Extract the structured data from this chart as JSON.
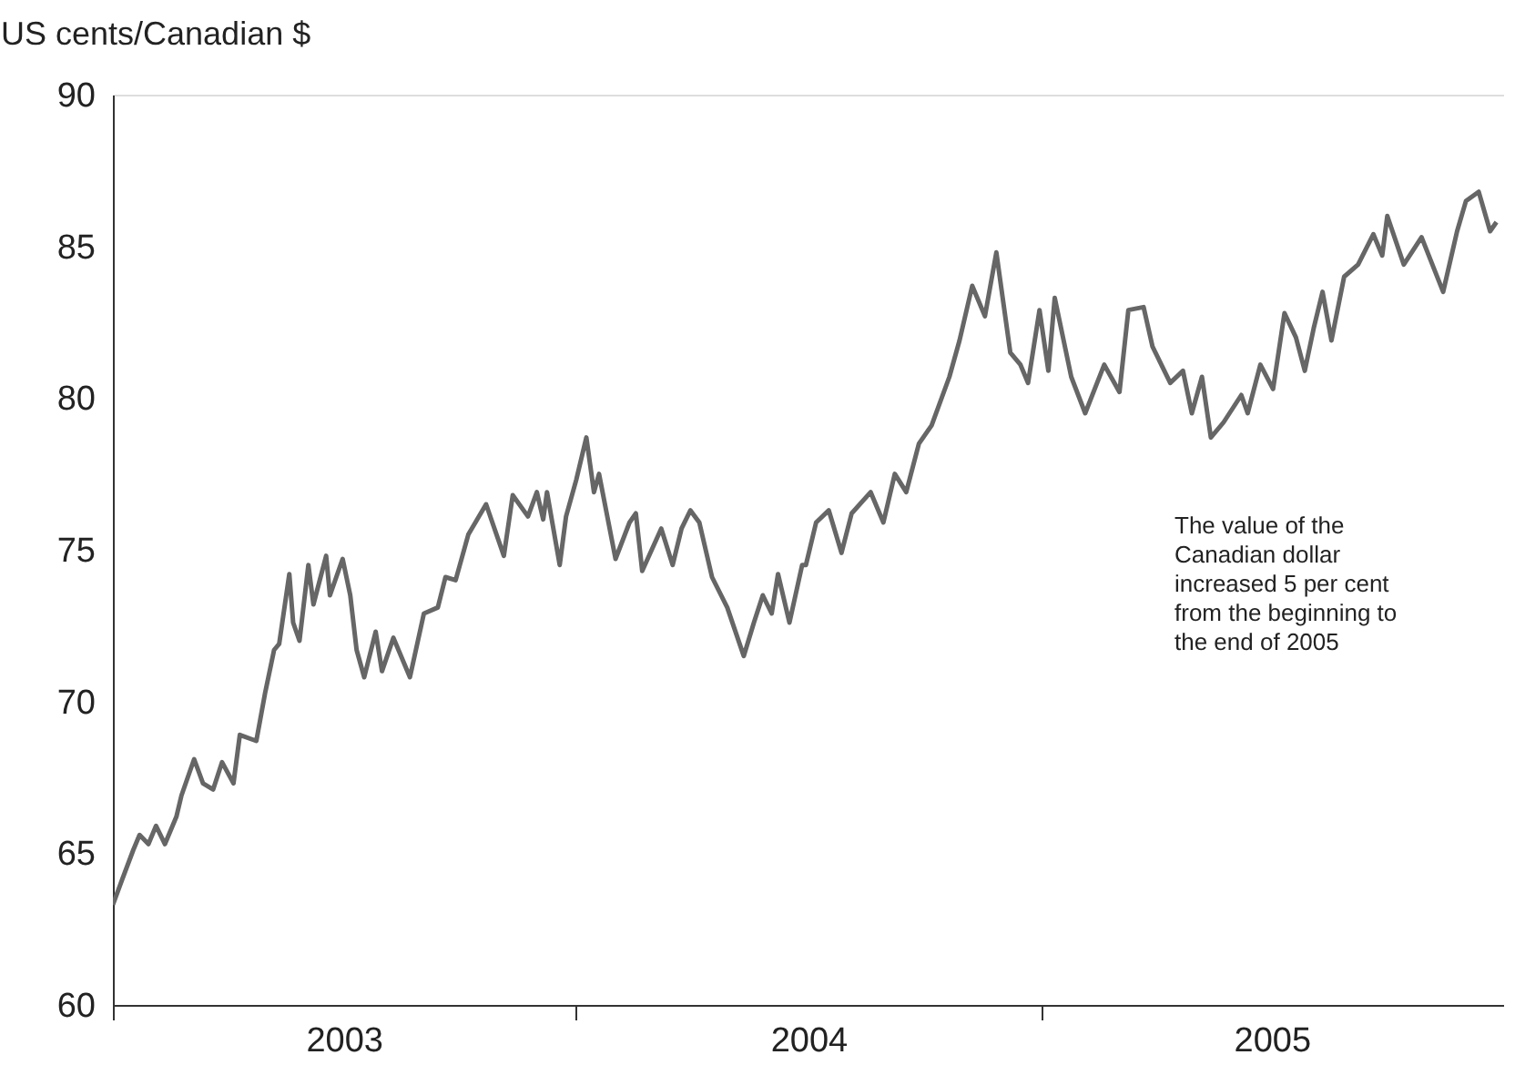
{
  "chart_data": {
    "type": "line",
    "ylabel": "US cents/Canadian $",
    "annotations": [
      "The value of the Canadian dollar increased 5 per cent from the beginning to the end of 2005"
    ],
    "xlim": [
      "2003-01-01",
      "2006-01-01"
    ],
    "xticks": [
      {
        "value": "2003-01-01",
        "label": null
      },
      {
        "value": "2003-07-02",
        "label": "2003"
      },
      {
        "value": "2004-01-01",
        "label": null
      },
      {
        "value": "2004-07-02",
        "label": "2004"
      },
      {
        "value": "2005-01-01",
        "label": null
      },
      {
        "value": "2005-07-02",
        "label": "2005"
      },
      {
        "value": "2006-01-01",
        "label": null
      }
    ],
    "ylim": [
      60,
      90
    ],
    "yticks": [
      60,
      65,
      70,
      75,
      80,
      85,
      90
    ],
    "grid": false,
    "legend": false,
    "marker": "none",
    "line_style": "solid",
    "series": [
      {
        "color": "#666666",
        "x": [
          "2003-01-01",
          "2003-01-08",
          "2003-01-17",
          "2003-01-22",
          "2003-01-29",
          "2003-02-04",
          "2003-02-11",
          "2003-02-20",
          "2003-02-24",
          "2003-03-06",
          "2003-03-13",
          "2003-03-21",
          "2003-03-28",
          "2003-04-06",
          "2003-04-11",
          "2003-04-24",
          "2003-05-01",
          "2003-05-08",
          "2003-05-12",
          "2003-05-20",
          "2003-05-23",
          "2003-05-28",
          "2003-06-04",
          "2003-06-08",
          "2003-06-18",
          "2003-06-21",
          "2003-07-01",
          "2003-07-07",
          "2003-07-12",
          "2003-07-18",
          "2003-07-27",
          "2003-08-01",
          "2003-08-10",
          "2003-08-23",
          "2003-09-03",
          "2003-09-14",
          "2003-09-20",
          "2003-09-28",
          "2003-10-08",
          "2003-10-22",
          "2003-11-05",
          "2003-11-12",
          "2003-11-24",
          "2003-12-01",
          "2003-12-06",
          "2003-12-09",
          "2003-12-19",
          "2003-12-24",
          "2004-01-01",
          "2004-01-09",
          "2004-01-15",
          "2004-01-19",
          "2004-02-01",
          "2004-02-12",
          "2004-02-17",
          "2004-02-22",
          "2004-03-08",
          "2004-03-17",
          "2004-03-24",
          "2004-03-31",
          "2004-04-07",
          "2004-04-17",
          "2004-04-29",
          "2004-05-12",
          "2004-05-20",
          "2004-05-27",
          "2004-06-03",
          "2004-06-08",
          "2004-06-17",
          "2004-06-27",
          "2004-06-30",
          "2004-07-08",
          "2004-07-18",
          "2004-07-28",
          "2004-08-05",
          "2004-08-20",
          "2004-08-30",
          "2004-09-08",
          "2004-09-17",
          "2004-09-27",
          "2004-10-07",
          "2004-10-21",
          "2004-10-29",
          "2004-11-08",
          "2004-11-18",
          "2004-11-27",
          "2004-12-08",
          "2004-12-16",
          "2004-12-22",
          "2004-12-31",
          "2005-01-07",
          "2005-01-12",
          "2005-01-25",
          "2005-02-05",
          "2005-02-20",
          "2005-03-04",
          "2005-03-11",
          "2005-03-23",
          "2005-03-30",
          "2005-04-13",
          "2005-04-23",
          "2005-04-30",
          "2005-05-08",
          "2005-05-15",
          "2005-05-25",
          "2005-06-08",
          "2005-06-13",
          "2005-06-23",
          "2005-07-03",
          "2005-07-12",
          "2005-07-21",
          "2005-07-28",
          "2005-08-04",
          "2005-08-11",
          "2005-08-18",
          "2005-08-28",
          "2005-09-08",
          "2005-09-20",
          "2005-09-27",
          "2005-10-01",
          "2005-10-14",
          "2005-10-28",
          "2005-11-14",
          "2005-11-25",
          "2005-12-02",
          "2005-12-12",
          "2005-12-21",
          "2005-12-26"
        ],
        "values": [
          63.3,
          64.1,
          65.1,
          65.6,
          65.3,
          65.9,
          65.3,
          66.2,
          66.9,
          68.1,
          67.3,
          67.1,
          68.0,
          67.3,
          68.9,
          68.7,
          70.3,
          71.7,
          71.9,
          74.2,
          72.6,
          72.0,
          74.5,
          73.2,
          74.8,
          73.5,
          74.7,
          73.5,
          71.7,
          70.8,
          72.3,
          71.0,
          72.1,
          70.8,
          72.9,
          73.1,
          74.1,
          74.0,
          75.5,
          76.5,
          74.8,
          76.8,
          76.1,
          76.9,
          76.0,
          76.9,
          74.5,
          76.1,
          77.3,
          78.7,
          76.9,
          77.5,
          74.7,
          75.9,
          76.2,
          74.3,
          75.7,
          74.5,
          75.7,
          76.3,
          75.9,
          74.1,
          73.1,
          71.5,
          72.6,
          73.5,
          72.9,
          74.2,
          72.6,
          74.5,
          74.5,
          75.9,
          76.3,
          74.9,
          76.2,
          76.9,
          75.9,
          77.5,
          76.9,
          78.5,
          79.1,
          80.7,
          81.9,
          83.7,
          82.7,
          84.8,
          81.5,
          81.1,
          80.5,
          82.9,
          80.9,
          83.3,
          80.7,
          79.5,
          81.1,
          80.2,
          82.9,
          83.0,
          81.7,
          80.5,
          80.9,
          79.5,
          80.7,
          78.7,
          79.2,
          80.1,
          79.5,
          81.1,
          80.3,
          82.8,
          82.0,
          80.9,
          82.3,
          83.5,
          81.9,
          84.0,
          84.4,
          85.4,
          84.7,
          86.0,
          84.4,
          85.3,
          83.5,
          85.5,
          86.5,
          86.8,
          85.5,
          85.8
        ]
      }
    ]
  }
}
